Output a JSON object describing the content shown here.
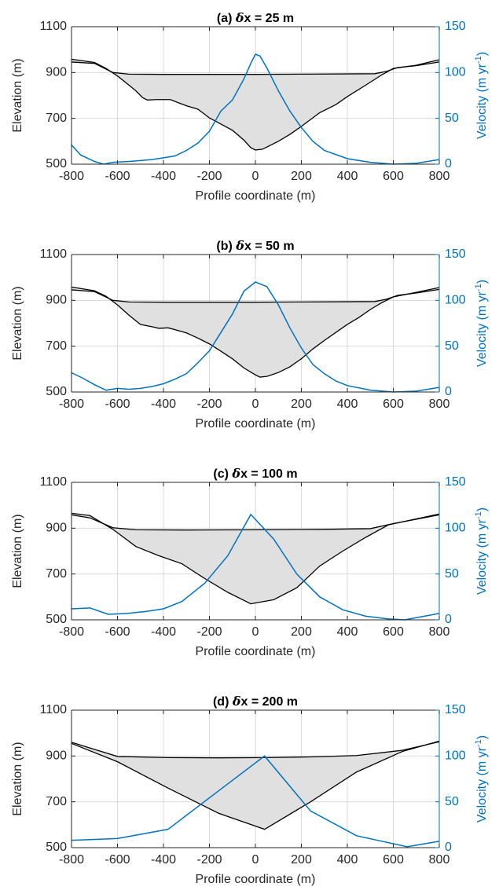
{
  "chart_data": [
    {
      "type": "line",
      "title_prefix": "(a) ",
      "title_symbol": "δ",
      "title_suffix": "x = 25 m",
      "xlabel": "Profile coordinate (m)",
      "ylabel": "Elevation (m)",
      "ylabel_right": "Velocity (m yr",
      "ylabel_right_sup": "-1",
      "ylabel_right_end": ")",
      "xlim": [
        -800,
        800
      ],
      "ylim": [
        500,
        1100
      ],
      "ylim_right": [
        0,
        150
      ],
      "xticks": [
        "-800",
        "-600",
        "-400",
        "-200",
        "0",
        "200",
        "400",
        "600",
        "800"
      ],
      "yticks": [
        "500",
        "700",
        "900",
        "1100"
      ],
      "yticks_right": [
        "0",
        "50",
        "100",
        "150"
      ],
      "grid": true,
      "ice_surface": [
        [
          -800,
          946
        ],
        [
          -700,
          940
        ],
        [
          -620,
          900
        ],
        [
          -550,
          893
        ],
        [
          -400,
          892
        ],
        [
          -200,
          892
        ],
        [
          0,
          892
        ],
        [
          200,
          893
        ],
        [
          400,
          894
        ],
        [
          520,
          895
        ],
        [
          570,
          905
        ],
        [
          620,
          922
        ],
        [
          700,
          930
        ],
        [
          800,
          946
        ]
      ],
      "glacier_outline": [
        [
          -800,
          958
        ],
        [
          -700,
          944
        ],
        [
          -650,
          918
        ],
        [
          -600,
          885
        ],
        [
          -550,
          845
        ],
        [
          -520,
          820
        ],
        [
          -490,
          790
        ],
        [
          -470,
          780
        ],
        [
          -430,
          782
        ],
        [
          -370,
          782
        ],
        [
          -340,
          770
        ],
        [
          -300,
          755
        ],
        [
          -250,
          740
        ],
        [
          -200,
          702
        ],
        [
          -150,
          675
        ],
        [
          -100,
          648
        ],
        [
          -50,
          605
        ],
        [
          -20,
          572
        ],
        [
          0,
          562
        ],
        [
          30,
          565
        ],
        [
          60,
          580
        ],
        [
          100,
          600
        ],
        [
          150,
          630
        ],
        [
          200,
          665
        ],
        [
          280,
          725
        ],
        [
          350,
          760
        ],
        [
          400,
          795
        ],
        [
          480,
          845
        ],
        [
          550,
          890
        ],
        [
          600,
          918
        ],
        [
          700,
          932
        ],
        [
          800,
          956
        ]
      ],
      "velocity": [
        [
          -800,
          21
        ],
        [
          -760,
          10
        ],
        [
          -700,
          3
        ],
        [
          -660,
          0
        ],
        [
          -620,
          2
        ],
        [
          -550,
          3
        ],
        [
          -500,
          4
        ],
        [
          -450,
          5
        ],
        [
          -400,
          7
        ],
        [
          -350,
          9
        ],
        [
          -300,
          15
        ],
        [
          -250,
          23
        ],
        [
          -200,
          36
        ],
        [
          -150,
          58
        ],
        [
          -100,
          70
        ],
        [
          -50,
          93
        ],
        [
          -20,
          110
        ],
        [
          0,
          120
        ],
        [
          20,
          118
        ],
        [
          50,
          105
        ],
        [
          100,
          80
        ],
        [
          150,
          58
        ],
        [
          200,
          40
        ],
        [
          250,
          25
        ],
        [
          300,
          15
        ],
        [
          400,
          6
        ],
        [
          500,
          2
        ],
        [
          600,
          0
        ],
        [
          700,
          1
        ],
        [
          800,
          5
        ]
      ]
    },
    {
      "type": "line",
      "title_prefix": "(b) ",
      "title_symbol": "δ",
      "title_suffix": "x = 50 m",
      "xlabel": "Profile coordinate (m)",
      "ylabel": "Elevation (m)",
      "ylabel_right": "Velocity (m yr",
      "ylabel_right_sup": "-1",
      "ylabel_right_end": ")",
      "xlim": [
        -800,
        800
      ],
      "ylim": [
        500,
        1100
      ],
      "ylim_right": [
        0,
        150
      ],
      "xticks": [
        "-800",
        "-600",
        "-400",
        "-200",
        "0",
        "200",
        "400",
        "600",
        "800"
      ],
      "yticks": [
        "500",
        "700",
        "900",
        "1100"
      ],
      "yticks_right": [
        "0",
        "50",
        "100",
        "150"
      ],
      "grid": true,
      "ice_surface": [
        [
          -800,
          946
        ],
        [
          -700,
          938
        ],
        [
          -620,
          900
        ],
        [
          -550,
          893
        ],
        [
          -400,
          892
        ],
        [
          -200,
          892
        ],
        [
          0,
          892
        ],
        [
          200,
          893
        ],
        [
          400,
          894
        ],
        [
          520,
          895
        ],
        [
          570,
          905
        ],
        [
          620,
          922
        ],
        [
          700,
          932
        ],
        [
          800,
          948
        ]
      ],
      "glacier_outline": [
        [
          -800,
          958
        ],
        [
          -700,
          942
        ],
        [
          -650,
          918
        ],
        [
          -600,
          880
        ],
        [
          -550,
          835
        ],
        [
          -500,
          795
        ],
        [
          -450,
          785
        ],
        [
          -420,
          778
        ],
        [
          -380,
          780
        ],
        [
          -350,
          772
        ],
        [
          -300,
          758
        ],
        [
          -250,
          735
        ],
        [
          -200,
          710
        ],
        [
          -150,
          678
        ],
        [
          -100,
          645
        ],
        [
          -50,
          605
        ],
        [
          0,
          575
        ],
        [
          20,
          565
        ],
        [
          50,
          568
        ],
        [
          100,
          585
        ],
        [
          150,
          610
        ],
        [
          200,
          645
        ],
        [
          250,
          688
        ],
        [
          300,
          725
        ],
        [
          350,
          760
        ],
        [
          400,
          795
        ],
        [
          450,
          825
        ],
        [
          500,
          860
        ],
        [
          550,
          890
        ],
        [
          600,
          915
        ],
        [
          700,
          935
        ],
        [
          800,
          956
        ]
      ],
      "velocity": [
        [
          -800,
          21
        ],
        [
          -750,
          15
        ],
        [
          -700,
          8
        ],
        [
          -650,
          2
        ],
        [
          -600,
          4
        ],
        [
          -550,
          3
        ],
        [
          -500,
          4
        ],
        [
          -450,
          6
        ],
        [
          -400,
          9
        ],
        [
          -350,
          14
        ],
        [
          -300,
          20
        ],
        [
          -250,
          32
        ],
        [
          -200,
          45
        ],
        [
          -150,
          65
        ],
        [
          -100,
          85
        ],
        [
          -50,
          110
        ],
        [
          0,
          120
        ],
        [
          50,
          115
        ],
        [
          100,
          95
        ],
        [
          150,
          70
        ],
        [
          200,
          48
        ],
        [
          250,
          30
        ],
        [
          300,
          20
        ],
        [
          350,
          12
        ],
        [
          400,
          7
        ],
        [
          500,
          2
        ],
        [
          600,
          0
        ],
        [
          700,
          1
        ],
        [
          800,
          5
        ]
      ]
    },
    {
      "type": "line",
      "title_prefix": "(c) ",
      "title_symbol": "δ",
      "title_suffix": "x = 100 m",
      "xlabel": "Profile coordinate (m)",
      "ylabel": "Elevation (m)",
      "ylabel_right": "Velocity (m yr",
      "ylabel_right_sup": "-1",
      "ylabel_right_end": ")",
      "xlim": [
        -800,
        800
      ],
      "ylim": [
        500,
        1100
      ],
      "ylim_right": [
        0,
        150
      ],
      "xticks": [
        "-800",
        "-600",
        "-400",
        "-200",
        "0",
        "200",
        "400",
        "600",
        "800"
      ],
      "yticks": [
        "500",
        "700",
        "900",
        "1100"
      ],
      "yticks_right": [
        "0",
        "50",
        "100",
        "150"
      ],
      "grid": true,
      "ice_surface": [
        [
          -800,
          958
        ],
        [
          -720,
          945
        ],
        [
          -620,
          902
        ],
        [
          -520,
          893
        ],
        [
          -300,
          892
        ],
        [
          0,
          893
        ],
        [
          300,
          895
        ],
        [
          500,
          898
        ],
        [
          600,
          920
        ],
        [
          800,
          958
        ]
      ],
      "glacier_outline": [
        [
          -800,
          965
        ],
        [
          -720,
          955
        ],
        [
          -620,
          895
        ],
        [
          -520,
          820
        ],
        [
          -420,
          780
        ],
        [
          -320,
          745
        ],
        [
          -220,
          680
        ],
        [
          -120,
          620
        ],
        [
          -20,
          570
        ],
        [
          80,
          588
        ],
        [
          180,
          640
        ],
        [
          280,
          735
        ],
        [
          380,
          800
        ],
        [
          480,
          860
        ],
        [
          580,
          915
        ],
        [
          800,
          962
        ]
      ],
      "velocity": [
        [
          -800,
          12
        ],
        [
          -720,
          13
        ],
        [
          -640,
          6
        ],
        [
          -560,
          7
        ],
        [
          -480,
          9
        ],
        [
          -400,
          12
        ],
        [
          -320,
          20
        ],
        [
          -220,
          40
        ],
        [
          -120,
          70
        ],
        [
          -20,
          115
        ],
        [
          80,
          88
        ],
        [
          180,
          50
        ],
        [
          280,
          25
        ],
        [
          380,
          11
        ],
        [
          480,
          4
        ],
        [
          580,
          1
        ],
        [
          650,
          0
        ],
        [
          800,
          7
        ]
      ]
    },
    {
      "type": "line",
      "title_prefix": "(d) ",
      "title_symbol": "δ",
      "title_suffix": "x = 200 m",
      "xlabel": "Profile coordinate (m)",
      "ylabel": "Elevation (m)",
      "ylabel_right": "Velocity (m yr",
      "ylabel_right_sup": "-1",
      "ylabel_right_end": ")",
      "xlim": [
        -800,
        800
      ],
      "ylim": [
        500,
        1100
      ],
      "ylim_right": [
        0,
        150
      ],
      "xticks": [
        "-800",
        "-600",
        "-400",
        "-200",
        "0",
        "200",
        "400",
        "600",
        "800"
      ],
      "yticks": [
        "500",
        "700",
        "900",
        "1100"
      ],
      "yticks_right": [
        "0",
        "50",
        "100",
        "150"
      ],
      "grid": true,
      "ice_surface": [
        [
          -800,
          960
        ],
        [
          -600,
          898
        ],
        [
          -380,
          893
        ],
        [
          -160,
          892
        ],
        [
          40,
          893
        ],
        [
          240,
          896
        ],
        [
          440,
          902
        ],
        [
          640,
          925
        ],
        [
          800,
          962
        ]
      ],
      "glacier_outline": [
        [
          -800,
          955
        ],
        [
          -600,
          875
        ],
        [
          -380,
          760
        ],
        [
          -160,
          650
        ],
        [
          40,
          580
        ],
        [
          240,
          700
        ],
        [
          440,
          830
        ],
        [
          640,
          920
        ],
        [
          800,
          965
        ]
      ],
      "velocity": [
        [
          -800,
          8
        ],
        [
          -600,
          10
        ],
        [
          -380,
          20
        ],
        [
          -160,
          62
        ],
        [
          40,
          100
        ],
        [
          240,
          40
        ],
        [
          440,
          13
        ],
        [
          660,
          1
        ],
        [
          800,
          7
        ]
      ]
    }
  ]
}
